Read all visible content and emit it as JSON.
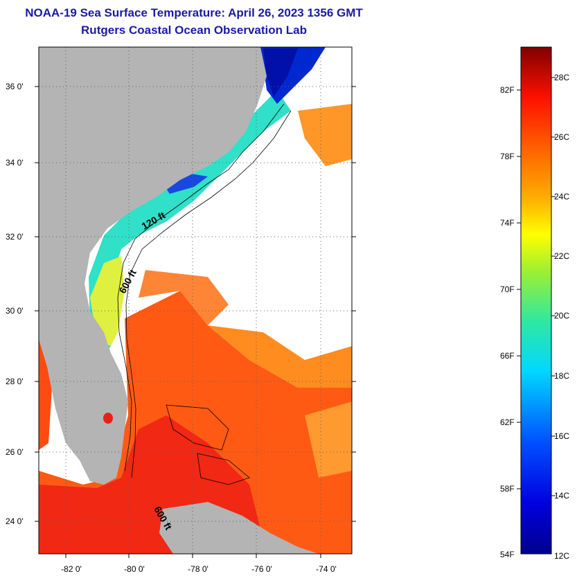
{
  "header": {
    "title": "NOAA-19 Sea Surface Temperature:  April 26, 2023 1356 GMT",
    "subtitle": "Rutgers Coastal Ocean Observation Lab"
  },
  "map": {
    "lat_labels": [
      "36 0'",
      "34 0'",
      "32 0'",
      "30 0'",
      "28 0'",
      "26 0'",
      "24 0'"
    ],
    "lon_labels": [
      "-82 0'",
      "-80 0'",
      "-78 0'",
      "-76 0'",
      "-74 0'"
    ],
    "contour_labels": [
      "120 ft",
      "600 ft",
      "600 ft"
    ],
    "colors": {
      "land": "#b4b4b4",
      "cloud": "#ffffff",
      "frame": "#000000"
    }
  },
  "colorbar": {
    "fahrenheit_labels": [
      "82F",
      "78F",
      "74F",
      "70F",
      "66F",
      "62F",
      "58F",
      "54F"
    ],
    "celsius_labels": [
      "28C",
      "26C",
      "24C",
      "22C",
      "20C",
      "18C",
      "16C",
      "14C",
      "12C"
    ]
  }
}
